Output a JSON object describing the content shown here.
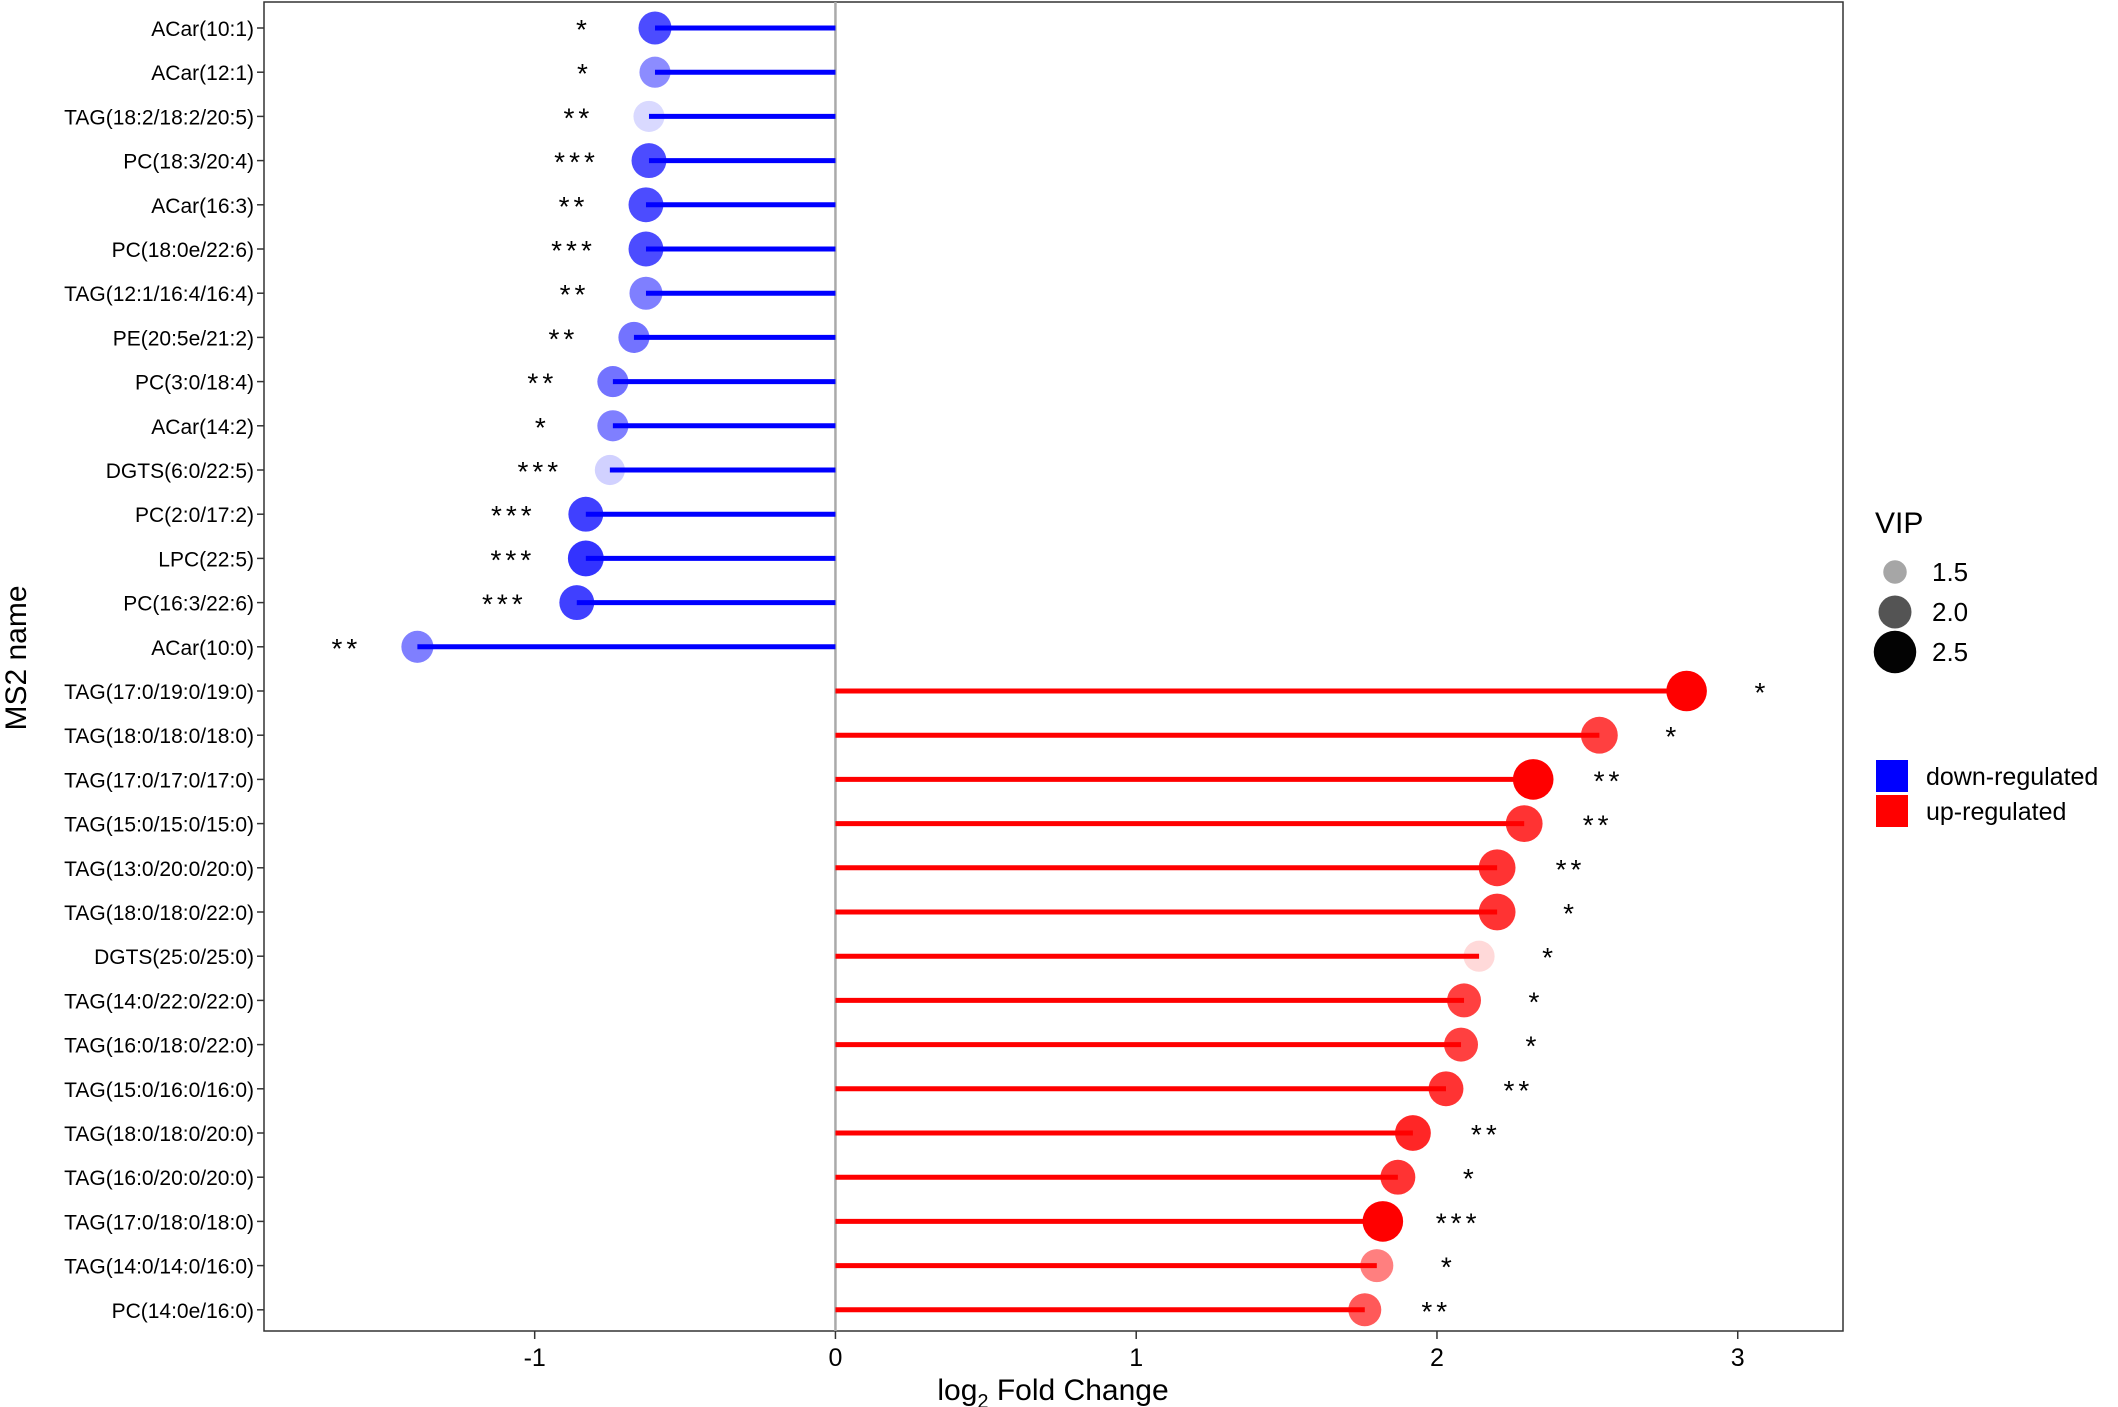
{
  "chart_data": {
    "type": "lollipop",
    "xlabel": "log",
    "xlabel_sub": "2",
    "xlabel_tail": " Fold Change",
    "ylabel": "MS2 name",
    "xlim": [
      -1.9,
      3.35
    ],
    "x_ticks": [
      -1,
      0,
      1,
      2,
      3
    ],
    "x_tick_labels": [
      "-1",
      "0",
      "1",
      "2",
      "3"
    ],
    "grid": false,
    "legend_position": "right",
    "size_legend": {
      "title": "VIP",
      "items": [
        {
          "label": "1.5",
          "vip": 1.5
        },
        {
          "label": "2.0",
          "vip": 2.0
        },
        {
          "label": "2.5",
          "vip": 2.5
        }
      ]
    },
    "color_legend": {
      "items": [
        {
          "label": "down-regulated",
          "color": "#0000ff"
        },
        {
          "label": "up-regulated",
          "color": "#ff0000"
        }
      ]
    },
    "points": [
      {
        "name": "ACar(10:1)",
        "value": -0.6,
        "vip": 2.0,
        "alpha": 0.7,
        "sig": "*"
      },
      {
        "name": "ACar(12:1)",
        "value": -0.6,
        "vip": 1.9,
        "alpha": 0.45,
        "sig": "*"
      },
      {
        "name": "TAG(18:2/18:2/20:5)",
        "value": -0.62,
        "vip": 1.9,
        "alpha": 0.15,
        "sig": "**"
      },
      {
        "name": "PC(18:3/20:4)",
        "value": -0.62,
        "vip": 2.1,
        "alpha": 0.7,
        "sig": "***"
      },
      {
        "name": "ACar(16:3)",
        "value": -0.63,
        "vip": 2.1,
        "alpha": 0.7,
        "sig": "**"
      },
      {
        "name": "PC(18:0e/22:6)",
        "value": -0.63,
        "vip": 2.1,
        "alpha": 0.7,
        "sig": "***"
      },
      {
        "name": "TAG(12:1/16:4/16:4)",
        "value": -0.63,
        "vip": 2.0,
        "alpha": 0.5,
        "sig": "**"
      },
      {
        "name": "PE(20:5e/21:2)",
        "value": -0.67,
        "vip": 1.9,
        "alpha": 0.55,
        "sig": "**"
      },
      {
        "name": "PC(3:0/18:4)",
        "value": -0.74,
        "vip": 1.9,
        "alpha": 0.55,
        "sig": "**"
      },
      {
        "name": "ACar(14:2)",
        "value": -0.74,
        "vip": 1.9,
        "alpha": 0.5,
        "sig": "*"
      },
      {
        "name": "DGTS(6:0/22:5)",
        "value": -0.75,
        "vip": 1.85,
        "alpha": 0.18,
        "sig": "***"
      },
      {
        "name": "PC(2:0/17:2)",
        "value": -0.83,
        "vip": 2.1,
        "alpha": 0.75,
        "sig": "***"
      },
      {
        "name": "LPC(22:5)",
        "value": -0.83,
        "vip": 2.15,
        "alpha": 0.8,
        "sig": "***"
      },
      {
        "name": "PC(16:3/22:6)",
        "value": -0.86,
        "vip": 2.1,
        "alpha": 0.75,
        "sig": "***"
      },
      {
        "name": "ACar(10:0)",
        "value": -1.39,
        "vip": 1.95,
        "alpha": 0.5,
        "sig": "**"
      },
      {
        "name": "TAG(17:0/19:0/19:0)",
        "value": 2.83,
        "vip": 2.4,
        "alpha": 1.0,
        "sig": "*"
      },
      {
        "name": "TAG(18:0/18:0/18:0)",
        "value": 2.54,
        "vip": 2.2,
        "alpha": 0.75,
        "sig": "*"
      },
      {
        "name": "TAG(17:0/17:0/17:0)",
        "value": 2.32,
        "vip": 2.4,
        "alpha": 1.0,
        "sig": "**"
      },
      {
        "name": "TAG(15:0/15:0/15:0)",
        "value": 2.29,
        "vip": 2.2,
        "alpha": 0.8,
        "sig": "**"
      },
      {
        "name": "TAG(13:0/20:0/20:0)",
        "value": 2.2,
        "vip": 2.2,
        "alpha": 0.8,
        "sig": "**"
      },
      {
        "name": "TAG(18:0/18:0/22:0)",
        "value": 2.2,
        "vip": 2.2,
        "alpha": 0.8,
        "sig": "*"
      },
      {
        "name": "DGTS(25:0/25:0)",
        "value": 2.14,
        "vip": 1.9,
        "alpha": 0.15,
        "sig": "*"
      },
      {
        "name": "TAG(14:0/22:0/22:0)",
        "value": 2.09,
        "vip": 2.05,
        "alpha": 0.75,
        "sig": "*"
      },
      {
        "name": "TAG(16:0/18:0/22:0)",
        "value": 2.08,
        "vip": 2.05,
        "alpha": 0.75,
        "sig": "*"
      },
      {
        "name": "TAG(15:0/16:0/16:0)",
        "value": 2.03,
        "vip": 2.1,
        "alpha": 0.8,
        "sig": "**"
      },
      {
        "name": "TAG(18:0/18:0/20:0)",
        "value": 1.92,
        "vip": 2.15,
        "alpha": 0.85,
        "sig": "**"
      },
      {
        "name": "TAG(16:0/20:0/20:0)",
        "value": 1.87,
        "vip": 2.1,
        "alpha": 0.8,
        "sig": "*"
      },
      {
        "name": "TAG(17:0/18:0/18:0)",
        "value": 1.82,
        "vip": 2.4,
        "alpha": 1.0,
        "sig": "***"
      },
      {
        "name": "TAG(14:0/14:0/16:0)",
        "value": 1.8,
        "vip": 2.0,
        "alpha": 0.5,
        "sig": "*"
      },
      {
        "name": "PC(14:0e/16:0)",
        "value": 1.76,
        "vip": 2.0,
        "alpha": 0.65,
        "sig": "**"
      }
    ]
  }
}
